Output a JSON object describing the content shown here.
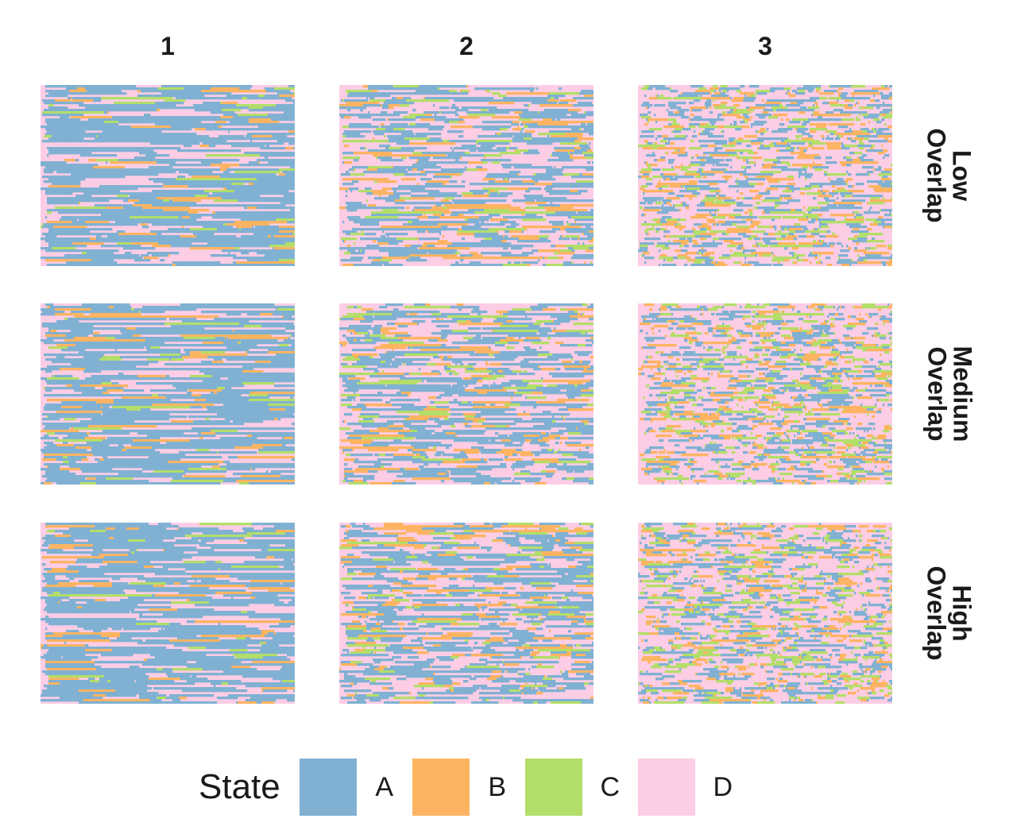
{
  "chart_data": {
    "type": "heatmap",
    "description_note": "",
    "columns": [
      "1",
      "2",
      "3"
    ],
    "rows": [
      "Low\nOverlap",
      "Medium\nOverlap",
      "High\nOverlap"
    ],
    "legend": {
      "title": "State",
      "entries": [
        {
          "label": "A",
          "color": "#80B1D3"
        },
        {
          "label": "B",
          "color": "#FDB462"
        },
        {
          "label": "C",
          "color": "#B3DE69"
        },
        {
          "label": "D",
          "color": "#FCCDE5"
        }
      ]
    },
    "state_mix_by_column": [
      {
        "A": 0.62,
        "B": 0.1,
        "C": 0.05,
        "D": 0.23
      },
      {
        "A": 0.4,
        "B": 0.12,
        "C": 0.08,
        "D": 0.4
      },
      {
        "A": 0.22,
        "B": 0.13,
        "C": 0.12,
        "D": 0.53
      }
    ],
    "grid": "off",
    "legend_position": "bottom"
  }
}
